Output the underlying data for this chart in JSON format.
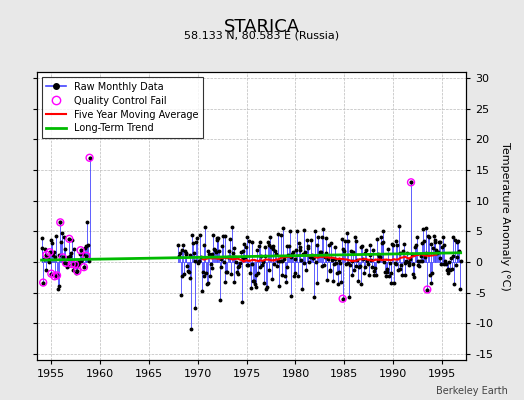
{
  "title": "STARICA",
  "subtitle": "58.133 N, 80.583 E (Russia)",
  "attribution": "Berkeley Earth",
  "ylabel_right": "Temperature Anomaly (°C)",
  "xlim": [
    1953.5,
    1997.5
  ],
  "ylim": [
    -16,
    31
  ],
  "yticks_right": [
    -15,
    -10,
    -5,
    0,
    5,
    10,
    15,
    20,
    25,
    30
  ],
  "xticks": [
    1955,
    1960,
    1965,
    1970,
    1975,
    1980,
    1985,
    1990,
    1995
  ],
  "bg_color": "#e8e8e8",
  "plot_bg_color": "#ffffff",
  "grid_color": "#bbbbbb",
  "raw_color": "#4444ff",
  "qc_color": "#ff00ff",
  "moving_avg_color": "#ff0000",
  "trend_color": "#00bb00",
  "seed": 42,
  "period1_start": 1954,
  "period1_end": 1959,
  "gap_start": 1960,
  "gap_end": 1968,
  "period2_start": 1968,
  "period2_end": 1997
}
